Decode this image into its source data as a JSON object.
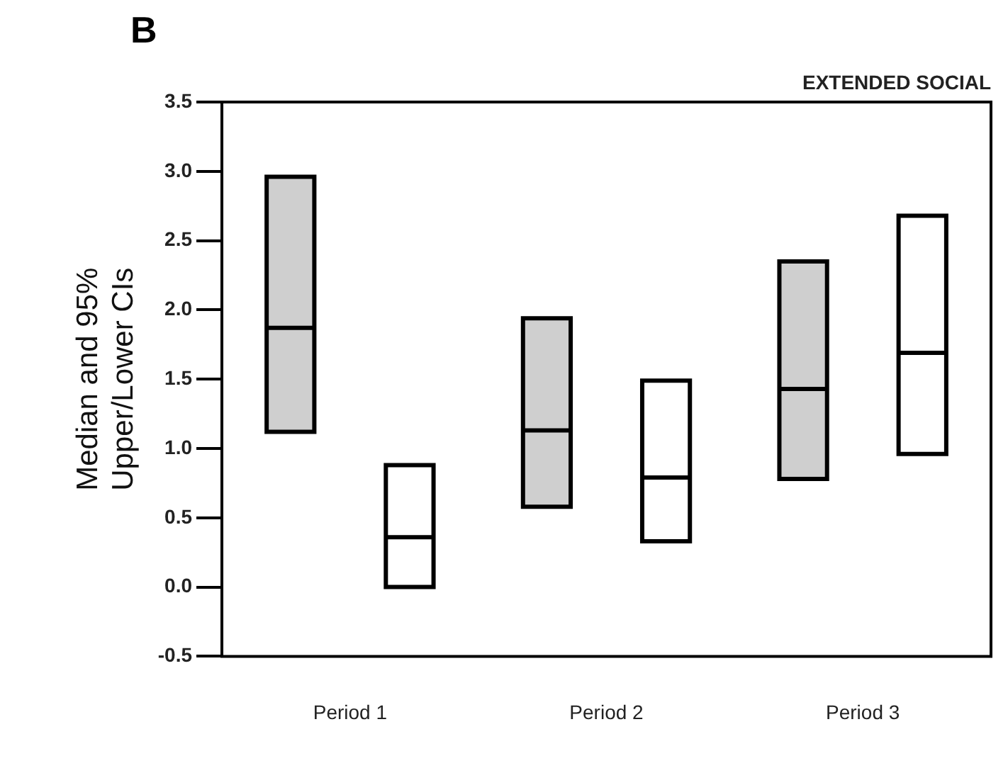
{
  "chart_data": {
    "type": "box",
    "title": "B",
    "ylabel": "Median and 95% Upper/Lower CIs",
    "annotations": [
      "EXTENDED SOCIAL"
    ],
    "categories": [
      "Period 1",
      "Period 2",
      "Period 3"
    ],
    "ylim": [
      -0.5,
      3.5
    ],
    "yticks": [
      {
        "value": -0.5,
        "label": "-0.5"
      },
      {
        "value": 0,
        "label": "0.0"
      },
      {
        "value": 0.5,
        "label": "0.5"
      },
      {
        "value": 1,
        "label": "1.0"
      },
      {
        "value": 1.5,
        "label": "1.5"
      },
      {
        "value": 2,
        "label": "2.0"
      },
      {
        "value": 2.5,
        "label": "2.5"
      },
      {
        "value": 3,
        "label": "3.0"
      },
      {
        "value": 3.5,
        "label": "3.5"
      }
    ],
    "series": [
      {
        "color": "#cfcfcf",
        "boxes": [
          {
            "low": 1.12,
            "q1": 1.12,
            "median": 1.87,
            "q3": 2.96,
            "high": 2.96
          },
          {
            "low": 0.58,
            "q1": 0.58,
            "median": 1.13,
            "q3": 1.94,
            "high": 1.94
          },
          {
            "low": 0.78,
            "q1": 0.78,
            "median": 1.43,
            "q3": 2.35,
            "high": 2.35
          }
        ]
      },
      {
        "color": "#ffffff",
        "boxes": [
          {
            "low": 0,
            "q1": 0,
            "median": 0.36,
            "q3": 0.88,
            "high": 0.88
          },
          {
            "low": 0.33,
            "q1": 0.33,
            "median": 0.79,
            "q3": 1.49,
            "high": 1.49
          },
          {
            "low": 0.96,
            "q1": 0.96,
            "median": 1.69,
            "q3": 2.68,
            "high": 2.68
          }
        ]
      }
    ]
  }
}
